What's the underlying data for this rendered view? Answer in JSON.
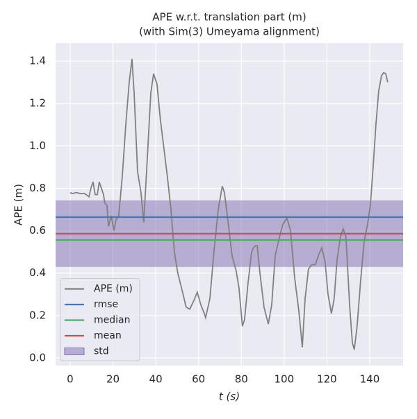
{
  "chart_data": {
    "type": "line",
    "title": [
      "APE w.r.t. translation part (m)",
      "(with Sim(3) Umeyama alignment)"
    ],
    "xlabel": "t (s)",
    "ylabel": "APE (m)",
    "xlim": [
      -6.8,
      155.6
    ],
    "ylim": [
      -0.036,
      1.485
    ],
    "xticks": [
      0,
      20,
      40,
      60,
      80,
      100,
      120,
      140
    ],
    "yticks": [
      {
        "value": 0,
        "label": "0.0"
      },
      0.2,
      0.4,
      0.6,
      0.8,
      {
        "value": 1,
        "label": "1.0"
      },
      1.2,
      1.4
    ],
    "grid": true,
    "legend": "lower left",
    "series": [
      {
        "name": "APE (m)",
        "color": "#808080",
        "x": [
          0,
          1,
          2.9,
          4.9,
          6.8,
          8.8,
          9.7,
          10.7,
          11.7,
          12.7,
          13.6,
          14.6,
          15.6,
          16.2,
          17.2,
          17.9,
          19.2,
          20.5,
          21.4,
          22.7,
          24.4,
          26,
          27.6,
          28.9,
          29.9,
          31.5,
          33.1,
          34.4,
          36.1,
          37.7,
          39,
          40.6,
          42.2,
          43.8,
          45.5,
          47.1,
          48.7,
          50.3,
          52.3,
          54.2,
          55.9,
          57.8,
          59.4,
          61.1,
          62.7,
          63.3,
          65.3,
          67.2,
          69.2,
          71.1,
          72.1,
          73.7,
          75.7,
          77.6,
          78.9,
          80.5,
          81.5,
          83.1,
          84.8,
          85.7,
          86.7,
          87.4,
          88.7,
          90.6,
          92.6,
          94.2,
          95.8,
          97.8,
          99.4,
          101.3,
          103,
          104.9,
          106.9,
          108.5,
          109.8,
          111.4,
          113,
          114.6,
          115.9,
          117.6,
          119.2,
          120.5,
          122.1,
          123.4,
          124.7,
          126.3,
          127.6,
          128.9,
          130.6,
          131.9,
          132.8,
          134.1,
          135.8,
          137.4,
          139,
          140.3,
          141.6,
          142.9,
          144.2,
          145.5,
          146.5,
          147.5,
          148.4
        ],
        "values": [
          0.78,
          0.775,
          0.78,
          0.775,
          0.775,
          0.76,
          0.8,
          0.83,
          0.77,
          0.77,
          0.83,
          0.8,
          0.77,
          0.73,
          0.72,
          0.62,
          0.67,
          0.6,
          0.65,
          0.67,
          0.86,
          1.1,
          1.3,
          1.41,
          1.25,
          0.88,
          0.78,
          0.64,
          0.95,
          1.25,
          1.34,
          1.29,
          1.12,
          0.99,
          0.85,
          0.7,
          0.5,
          0.4,
          0.32,
          0.24,
          0.23,
          0.27,
          0.31,
          0.25,
          0.21,
          0.19,
          0.28,
          0.5,
          0.7,
          0.81,
          0.78,
          0.65,
          0.48,
          0.41,
          0.33,
          0.15,
          0.18,
          0.35,
          0.5,
          0.52,
          0.53,
          0.53,
          0.4,
          0.24,
          0.16,
          0.25,
          0.48,
          0.57,
          0.63,
          0.66,
          0.6,
          0.38,
          0.22,
          0.05,
          0.28,
          0.42,
          0.44,
          0.44,
          0.48,
          0.52,
          0.45,
          0.3,
          0.21,
          0.28,
          0.46,
          0.57,
          0.61,
          0.57,
          0.25,
          0.07,
          0.04,
          0.15,
          0.37,
          0.55,
          0.63,
          0.72,
          0.9,
          1.1,
          1.26,
          1.33,
          1.345,
          1.34,
          1.3
        ]
      }
    ],
    "stats": [
      {
        "name": "rmse",
        "color": "#4c72b0",
        "value": 0.664
      },
      {
        "name": "median",
        "color": "#55a868",
        "value": 0.556
      },
      {
        "name": "mean",
        "color": "#c44e52",
        "value": 0.586
      }
    ],
    "std": {
      "name": "std",
      "color": "#8172b2",
      "value": 0.157
    }
  }
}
